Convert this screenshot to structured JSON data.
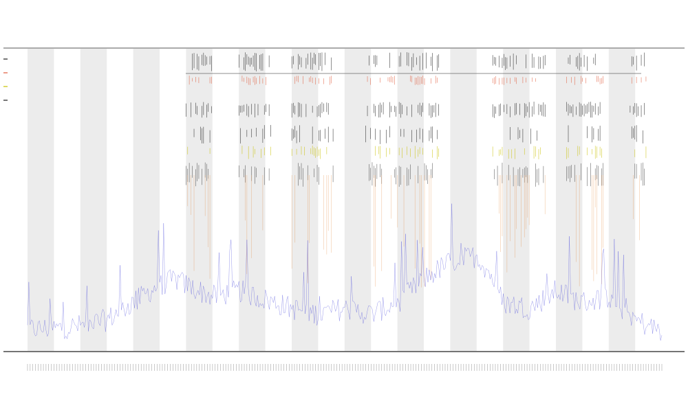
{
  "chart_data": {
    "type": "line",
    "title": "",
    "subtitle_1": "",
    "subtitle_2": "",
    "xlabel": "",
    "ylabel": "",
    "legend": {
      "placement": "top-left",
      "entries": [
        {
          "name": "",
          "color": "#1a1a1a"
        },
        {
          "name": "",
          "color": "#e05a3a"
        },
        {
          "name": "",
          "color": "#c8c000"
        },
        {
          "name": "",
          "color": "#1a1a1a"
        }
      ]
    },
    "grid": false,
    "shaded_bands": true,
    "colors": {
      "signal_line": "#3a3ad8",
      "spike_black": "#1a1a1a",
      "spike_red": "#e05a3a",
      "spike_yellow": "#c8c000",
      "spike_orange": "#e07820",
      "band": "#ececec"
    },
    "x_count": 240,
    "ylim": [
      0,
      1
    ],
    "series": [
      {
        "name": "",
        "control_points": [
          [
            0,
            0.05
          ],
          [
            10,
            0.05
          ],
          [
            20,
            0.06
          ],
          [
            30,
            0.08
          ],
          [
            40,
            0.14
          ],
          [
            50,
            0.2
          ],
          [
            56,
            0.22
          ],
          [
            60,
            0.2
          ],
          [
            70,
            0.16
          ],
          [
            80,
            0.18
          ],
          [
            90,
            0.15
          ],
          [
            100,
            0.12
          ],
          [
            110,
            0.1
          ],
          [
            120,
            0.12
          ],
          [
            130,
            0.1
          ],
          [
            140,
            0.14
          ],
          [
            150,
            0.22
          ],
          [
            160,
            0.28
          ],
          [
            170,
            0.3
          ],
          [
            175,
            0.24
          ],
          [
            180,
            0.14
          ],
          [
            190,
            0.12
          ],
          [
            200,
            0.18
          ],
          [
            210,
            0.14
          ],
          [
            220,
            0.16
          ],
          [
            230,
            0.08
          ],
          [
            240,
            0.04
          ]
        ]
      }
    ],
    "spike_clusters": [
      {
        "start": 60,
        "end": 70
      },
      {
        "start": 80,
        "end": 92
      },
      {
        "start": 100,
        "end": 116
      },
      {
        "start": 128,
        "end": 156
      },
      {
        "start": 176,
        "end": 196
      },
      {
        "start": 204,
        "end": 218
      },
      {
        "start": 228,
        "end": 234
      }
    ]
  }
}
